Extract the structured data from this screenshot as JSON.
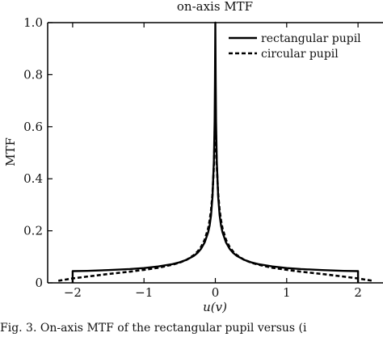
{
  "chart_data": {
    "type": "line",
    "title": "on-axis MTF",
    "xlabel": "u(v)",
    "ylabel": "MTF",
    "xlim": [
      -2.35,
      2.35
    ],
    "ylim": [
      0,
      1.0
    ],
    "x_ticks": [
      -2,
      -1,
      0,
      1,
      2
    ],
    "x_tick_labels": [
      "−2",
      "−1",
      "0",
      "1",
      "2"
    ],
    "y_ticks": [
      0,
      0.2,
      0.4,
      0.6,
      0.8,
      1.0
    ],
    "y_tick_labels": [
      "0",
      "0.2",
      "0.4",
      "0.6",
      "0.8",
      "1.0"
    ],
    "grid": false,
    "legend_position": "top-right",
    "series": [
      {
        "name": "rectangular pupil",
        "style": "solid",
        "color": "#000000",
        "x": [
          -2.0,
          -2.0,
          -1.8,
          -1.5,
          -1.2,
          -1.0,
          -0.8,
          -0.6,
          -0.5,
          -0.4,
          -0.3,
          -0.25,
          -0.2,
          -0.15,
          -0.1,
          -0.08,
          -0.06,
          -0.04,
          -0.02,
          -0.01,
          -0.005,
          0.0,
          0.005,
          0.01,
          0.02,
          0.04,
          0.06,
          0.08,
          0.1,
          0.15,
          0.2,
          0.25,
          0.3,
          0.4,
          0.5,
          0.6,
          0.8,
          1.0,
          1.2,
          1.5,
          1.8,
          2.0,
          2.0
        ],
        "y": [
          0.0,
          0.045,
          0.046,
          0.049,
          0.053,
          0.057,
          0.063,
          0.072,
          0.079,
          0.089,
          0.104,
          0.115,
          0.131,
          0.155,
          0.195,
          0.22,
          0.26,
          0.33,
          0.47,
          0.62,
          0.78,
          1.0,
          0.78,
          0.62,
          0.47,
          0.33,
          0.26,
          0.22,
          0.195,
          0.155,
          0.131,
          0.115,
          0.104,
          0.089,
          0.079,
          0.072,
          0.063,
          0.057,
          0.053,
          0.049,
          0.046,
          0.045,
          0.0
        ]
      },
      {
        "name": "circular pupil",
        "style": "dashed",
        "color": "#000000",
        "x": [
          -2.2,
          -2.0,
          -1.8,
          -1.5,
          -1.2,
          -1.0,
          -0.8,
          -0.6,
          -0.5,
          -0.4,
          -0.3,
          -0.25,
          -0.2,
          -0.15,
          -0.1,
          -0.08,
          -0.06,
          -0.04,
          -0.02,
          -0.01,
          0.0,
          0.01,
          0.02,
          0.04,
          0.06,
          0.08,
          0.1,
          0.15,
          0.2,
          0.25,
          0.3,
          0.4,
          0.5,
          0.6,
          0.8,
          1.0,
          1.2,
          1.5,
          1.8,
          2.0,
          2.2
        ],
        "y": [
          0.008,
          0.017,
          0.024,
          0.034,
          0.043,
          0.05,
          0.058,
          0.07,
          0.078,
          0.089,
          0.107,
          0.12,
          0.138,
          0.165,
          0.21,
          0.24,
          0.28,
          0.34,
          0.45,
          0.55,
          0.72,
          0.55,
          0.45,
          0.34,
          0.28,
          0.24,
          0.21,
          0.165,
          0.138,
          0.12,
          0.107,
          0.089,
          0.078,
          0.07,
          0.058,
          0.05,
          0.043,
          0.034,
          0.024,
          0.017,
          0.008
        ]
      }
    ]
  },
  "caption_text": "Fig. 3.  On-axis MTF of the rectangular pupil versus (i"
}
